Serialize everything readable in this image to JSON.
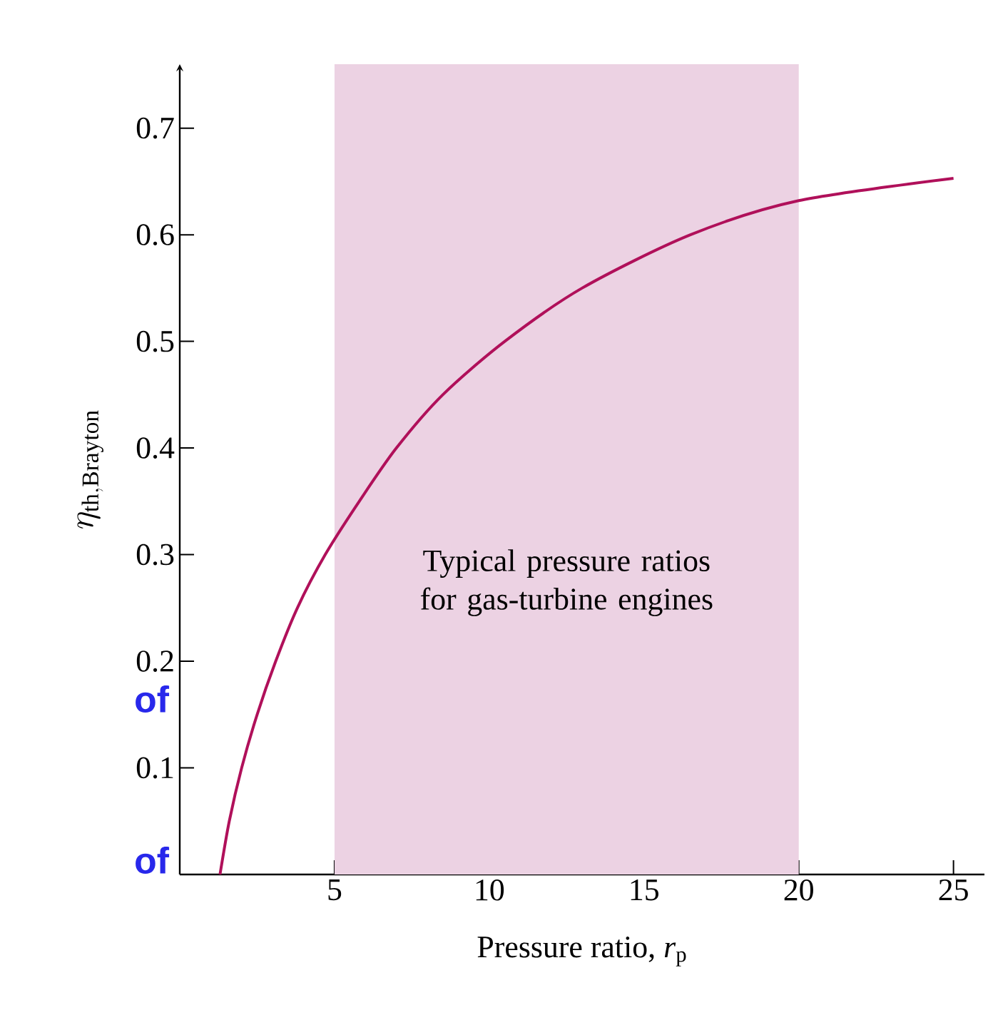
{
  "chart_data": {
    "type": "line",
    "xlabel": "Pressure ratio, *r*$_{p}$",
    "ylabel": "\\eta_{\\mathrm{th,Brayton}}",
    "x": [
      1.3,
      1.6,
      2.0,
      2.5,
      3.1,
      3.8,
      4.7,
      5.8,
      7.0,
      8.5,
      10.5,
      13.0,
      16.5,
      20,
      25
    ],
    "series": [
      {
        "color": "#b0105a",
        "values": [
          0,
          0.05,
          0.1,
          0.15,
          0.2,
          0.25,
          0.3,
          0.35,
          0.4,
          0.45,
          0.5,
          0.55,
          0.6,
          0.632,
          0.653
        ]
      }
    ],
    "xlim": [
      0,
      26
    ],
    "ylim": [
      0,
      0.76
    ],
    "xticks": [
      5,
      10,
      15,
      20,
      25
    ],
    "yticks": [
      0.1,
      0.2,
      0.3,
      0.4,
      0.5,
      0.6,
      0.7
    ],
    "bands": [
      {
        "axis": "x",
        "from": 5,
        "to": 20,
        "label": "Typical pressure ratios for gas-turbine engines",
        "color": "#ecd2e3"
      }
    ],
    "annotations": [
      "of",
      "of"
    ],
    "grid": false,
    "marker": "none",
    "line_style": "solid"
  }
}
